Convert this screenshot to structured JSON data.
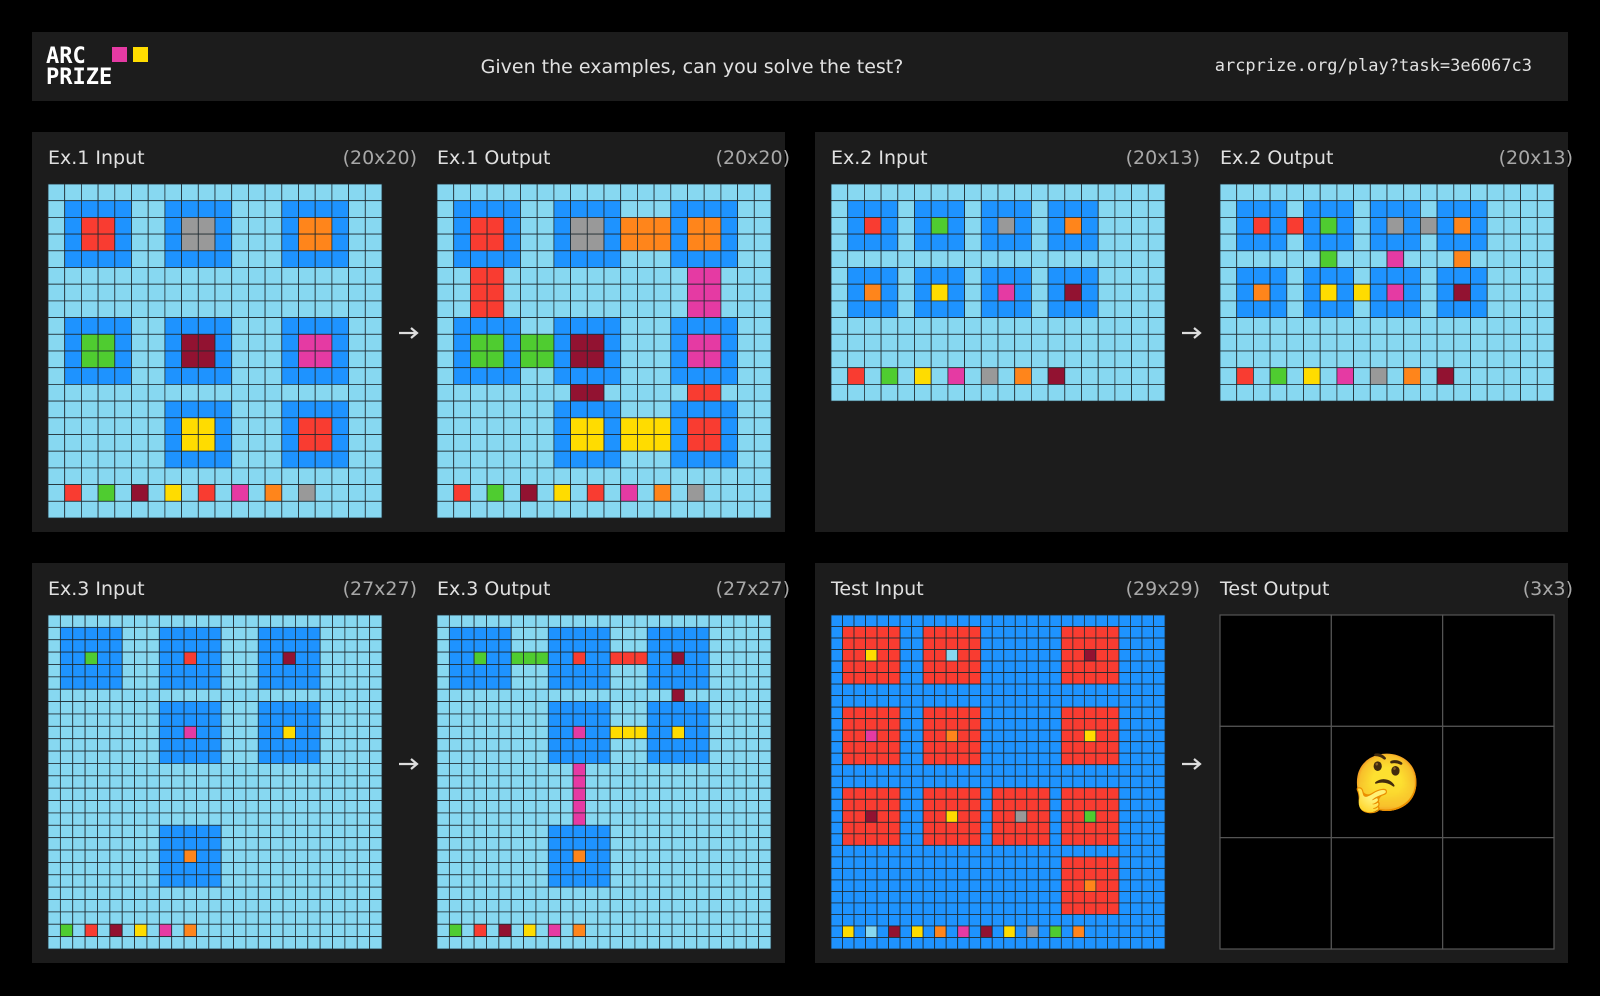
{
  "header": {
    "logo": [
      "ARC",
      "PRIZE"
    ],
    "prompt": "Given the examples, can you solve the test?",
    "url": "arcprize.org/play?task=3e6067c3"
  },
  "palette": {
    "0": "#000000",
    "1": "#1E93FF",
    "2": "#F93C31",
    "3": "#4FCC30",
    "4": "#FFDC00",
    "5": "#999999",
    "6": "#E53AA3",
    "7": "#FF851B",
    "8": "#87D8F1",
    "9": "#921231"
  },
  "pairs": [
    {
      "input": {
        "label": "Ex.1 Input",
        "size": "(20x20)",
        "grid": [
          "88888888888888888888",
          "81111881111888111188",
          "81221881551888177188",
          "81221881551888177188",
          "81111881111888111188",
          "88888888888888888888",
          "88888888888888888888",
          "88888888888888888888",
          "81111881111888111188",
          "81331881991888166188",
          "81331881991888166188",
          "81111881111888111188",
          "88888888888888888888",
          "88888881111888111188",
          "88888881441888122188",
          "88888881441888122188",
          "88888881111888111188",
          "88888888888888888888",
          "82838984828687858888",
          "88888888888888888888"
        ]
      },
      "output": {
        "label": "Ex.1 Output",
        "size": "(20x20)",
        "grid": [
          "88888888888888888888",
          "81111881111888111188",
          "81221881551777177188",
          "81221881551777177188",
          "81111881111888111188",
          "88228888888888866888",
          "88228888888888866888",
          "88228888888888866888",
          "81111881111888111188",
          "81331331991888166188",
          "81331331991888166188",
          "81111881111888111188",
          "88888888998888822888",
          "88888881111888111188",
          "88888881441444122188",
          "88888881441444122188",
          "88888881111888111188",
          "88888888888888888888",
          "82838984828687858888",
          "88888888888888888888"
        ]
      }
    },
    {
      "input": {
        "label": "Ex.2 Input",
        "size": "(20x13)",
        "grid": [
          "88888888888888888888",
          "81118111811181118888",
          "81218131815181718888",
          "81118111811181118888",
          "88888888888888888888",
          "81118111811181118888",
          "81718141816181918888",
          "81118111811181118888",
          "88888888888888888888",
          "88888888888888888888",
          "88888888888888888888",
          "82838486858789888888",
          "88888888888888888888"
        ]
      },
      "output": {
        "label": "Ex.2 Output",
        "size": "(20x13)",
        "grid": [
          "88888888888888888888",
          "81118111811181118888",
          "81212131815151718888",
          "81118111811181118888",
          "88888838886888788888",
          "81118111811181118888",
          "81718141416181918888",
          "81118111811181118888",
          "88888888888888888888",
          "88888888888888888888",
          "88888888888888888888",
          "82838486858789888888",
          "88888888888888888888"
        ]
      }
    },
    {
      "input": {
        "label": "Ex.3 Input",
        "size": "(27x27)",
        "grid": [
          "888888888888888888888888888",
          "811111888111118881111188888",
          "811111888111118881111188888",
          "811311888112118881191188888",
          "811111888111118881111188888",
          "811111888111118881111188888",
          "888888888888888888888888888",
          "888888888111118881111188888",
          "888888888111118881111188888",
          "888888888116118881141188888",
          "888888888111118881111188888",
          "888888888111118881111188888",
          "888888888888888888888888888",
          "888888888888888888888888888",
          "888888888888888888888888888",
          "888888888888888888888888888",
          "888888888888888888888888888",
          "888888888111118888888888888",
          "888888888111118888888888888",
          "888888888117118888888888888",
          "888888888111118888888888888",
          "888888888111118888888888888",
          "888888888888888888888888888",
          "888888888888888888888888888",
          "888888888888888888888888888",
          "838289848687888888888888888",
          "888888888888888888888888888"
        ]
      },
      "output": {
        "label": "Ex.3 Output",
        "size": "(27x27)",
        "grid": [
          "888888888888888888888888888",
          "811111888111118881111188888",
          "811111888111118881111188888",
          "811311333112112221191188888",
          "811111888111118881111188888",
          "811111888111118881111188888",
          "888888888888888888898888888",
          "888888888111118881111188888",
          "888888888111118881111188888",
          "888888888116114441141188888",
          "888888888111118881111188888",
          "888888888111118881111188888",
          "888888888886888888888888888",
          "888888888886888888888888888",
          "888888888886888888888888888",
          "888888888886888888888888888",
          "888888888886888888888888888",
          "888888888111118888888888888",
          "888888888111118888888888888",
          "888888888117118888888888888",
          "888888888111118888888888888",
          "888888888111118888888888888",
          "888888888888888888888888888",
          "888888888888888888888888888",
          "888888888888888888888888888",
          "838289848687888888888888888",
          "888888888888888888888888888"
        ]
      }
    },
    {
      "input": {
        "label": "Test Input",
        "size": "(29x29)",
        "grid": [
          "11111111111111111111111111111",
          "12222211222221111111222221111",
          "12222211222221111111222221111",
          "12242211228221111111229221111",
          "12222211222221111111222221111",
          "12222211222221111111222221111",
          "11111111111111111111111111111",
          "11111111111111111111111111111",
          "12222211222221111111222221111",
          "12222211222221111111222221111",
          "12262211227221111111224221111",
          "12222211222221111111222221111",
          "12222211222221111111222221111",
          "11111111111111111111111111111",
          "11111111111111111111111111111",
          "12222211222221222221222221111",
          "12222211222221222221222221111",
          "12292211224221225221223221111",
          "12222211222221222221222221111",
          "12222211222221222221222221111",
          "11111111111111111111111111111",
          "11111111111111111111222221111",
          "11111111111111111111222221111",
          "11111111111111111111227221111",
          "11111111111111111111222221111",
          "11111111111111111111222221111",
          "11111111111111111111111111111",
          "14181914171619141513171111111",
          "11111111111111111111111111111"
        ]
      },
      "output": {
        "label": "Test Output",
        "size": "(3x3)",
        "grid": [
          "000",
          "000",
          "000"
        ],
        "placeholder": "🤔"
      }
    }
  ]
}
